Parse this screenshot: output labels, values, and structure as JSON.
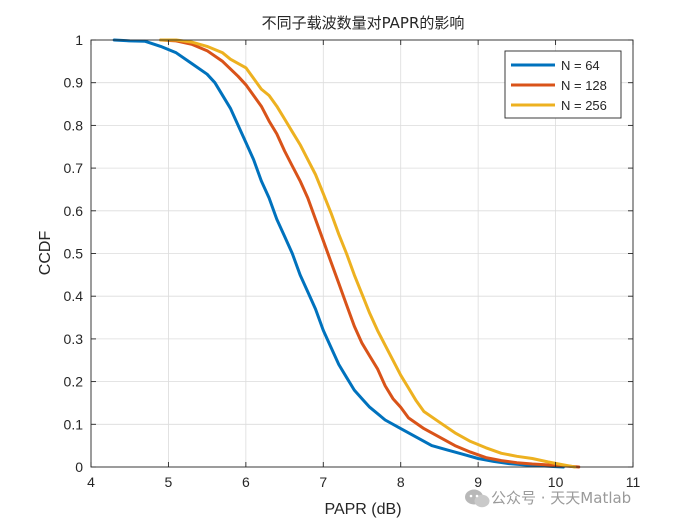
{
  "chart_data": {
    "type": "line",
    "title": "不同子载波数量对PAPR的影响",
    "xlabel": "PAPR (dB)",
    "ylabel": "CCDF",
    "xlim": [
      4,
      11
    ],
    "ylim": [
      0,
      1
    ],
    "xticks": [
      "4",
      "5",
      "6",
      "7",
      "8",
      "9",
      "10",
      "11"
    ],
    "yticks": [
      "0",
      "0.1",
      "0.2",
      "0.3",
      "0.4",
      "0.5",
      "0.6",
      "0.7",
      "0.8",
      "0.9",
      "1"
    ],
    "grid": true,
    "legend_position": "top-right",
    "series": [
      {
        "name": "N = 64",
        "color": "#0072BD",
        "points": [
          [
            4.3,
            1.0
          ],
          [
            4.5,
            0.998
          ],
          [
            4.7,
            0.997
          ],
          [
            4.9,
            0.985
          ],
          [
            5.1,
            0.97
          ],
          [
            5.3,
            0.945
          ],
          [
            5.5,
            0.92
          ],
          [
            5.6,
            0.9
          ],
          [
            5.8,
            0.84
          ],
          [
            6.0,
            0.76
          ],
          [
            6.1,
            0.72
          ],
          [
            6.2,
            0.67
          ],
          [
            6.3,
            0.63
          ],
          [
            6.4,
            0.58
          ],
          [
            6.5,
            0.54
          ],
          [
            6.6,
            0.5
          ],
          [
            6.7,
            0.45
          ],
          [
            6.8,
            0.41
          ],
          [
            6.9,
            0.37
          ],
          [
            7.0,
            0.32
          ],
          [
            7.1,
            0.28
          ],
          [
            7.2,
            0.24
          ],
          [
            7.3,
            0.21
          ],
          [
            7.4,
            0.18
          ],
          [
            7.5,
            0.16
          ],
          [
            7.6,
            0.14
          ],
          [
            7.8,
            0.11
          ],
          [
            8.0,
            0.09
          ],
          [
            8.2,
            0.07
          ],
          [
            8.4,
            0.05
          ],
          [
            8.6,
            0.04
          ],
          [
            8.8,
            0.03
          ],
          [
            9.0,
            0.02
          ],
          [
            9.2,
            0.013
          ],
          [
            9.4,
            0.008
          ],
          [
            9.6,
            0.005
          ],
          [
            9.8,
            0.003
          ],
          [
            10.0,
            0.001
          ],
          [
            10.1,
            0.0
          ]
        ]
      },
      {
        "name": "N = 128",
        "color": "#D95319",
        "points": [
          [
            4.9,
            1.0
          ],
          [
            5.1,
            0.998
          ],
          [
            5.3,
            0.99
          ],
          [
            5.5,
            0.975
          ],
          [
            5.7,
            0.95
          ],
          [
            5.9,
            0.915
          ],
          [
            6.0,
            0.895
          ],
          [
            6.1,
            0.87
          ],
          [
            6.2,
            0.845
          ],
          [
            6.3,
            0.81
          ],
          [
            6.4,
            0.78
          ],
          [
            6.5,
            0.74
          ],
          [
            6.6,
            0.705
          ],
          [
            6.7,
            0.67
          ],
          [
            6.8,
            0.63
          ],
          [
            6.9,
            0.58
          ],
          [
            7.0,
            0.53
          ],
          [
            7.1,
            0.48
          ],
          [
            7.2,
            0.43
          ],
          [
            7.3,
            0.38
          ],
          [
            7.4,
            0.33
          ],
          [
            7.5,
            0.29
          ],
          [
            7.6,
            0.26
          ],
          [
            7.7,
            0.23
          ],
          [
            7.8,
            0.19
          ],
          [
            7.9,
            0.16
          ],
          [
            8.0,
            0.14
          ],
          [
            8.1,
            0.115
          ],
          [
            8.3,
            0.09
          ],
          [
            8.5,
            0.07
          ],
          [
            8.7,
            0.05
          ],
          [
            8.9,
            0.035
          ],
          [
            9.1,
            0.022
          ],
          [
            9.3,
            0.015
          ],
          [
            9.5,
            0.01
          ],
          [
            9.7,
            0.007
          ],
          [
            9.9,
            0.005
          ],
          [
            10.1,
            0.003
          ],
          [
            10.3,
            0.0
          ]
        ]
      },
      {
        "name": "N = 256",
        "color": "#EDB120",
        "points": [
          [
            4.9,
            1.0
          ],
          [
            5.1,
            1.0
          ],
          [
            5.3,
            0.995
          ],
          [
            5.5,
            0.985
          ],
          [
            5.7,
            0.97
          ],
          [
            5.8,
            0.955
          ],
          [
            6.0,
            0.935
          ],
          [
            6.1,
            0.91
          ],
          [
            6.2,
            0.885
          ],
          [
            6.3,
            0.87
          ],
          [
            6.4,
            0.845
          ],
          [
            6.5,
            0.815
          ],
          [
            6.6,
            0.785
          ],
          [
            6.7,
            0.755
          ],
          [
            6.8,
            0.72
          ],
          [
            6.9,
            0.685
          ],
          [
            7.0,
            0.64
          ],
          [
            7.1,
            0.595
          ],
          [
            7.2,
            0.545
          ],
          [
            7.3,
            0.5
          ],
          [
            7.4,
            0.45
          ],
          [
            7.5,
            0.405
          ],
          [
            7.6,
            0.36
          ],
          [
            7.7,
            0.32
          ],
          [
            7.8,
            0.285
          ],
          [
            7.9,
            0.25
          ],
          [
            8.0,
            0.215
          ],
          [
            8.1,
            0.185
          ],
          [
            8.2,
            0.155
          ],
          [
            8.3,
            0.13
          ],
          [
            8.5,
            0.105
          ],
          [
            8.7,
            0.08
          ],
          [
            8.9,
            0.06
          ],
          [
            9.1,
            0.045
          ],
          [
            9.3,
            0.032
          ],
          [
            9.5,
            0.025
          ],
          [
            9.7,
            0.02
          ],
          [
            9.9,
            0.012
          ],
          [
            10.1,
            0.005
          ],
          [
            10.25,
            0.0
          ]
        ]
      }
    ]
  },
  "watermark": {
    "text": "公众号 · 天天Matlab",
    "icon": "wechat-icon"
  }
}
